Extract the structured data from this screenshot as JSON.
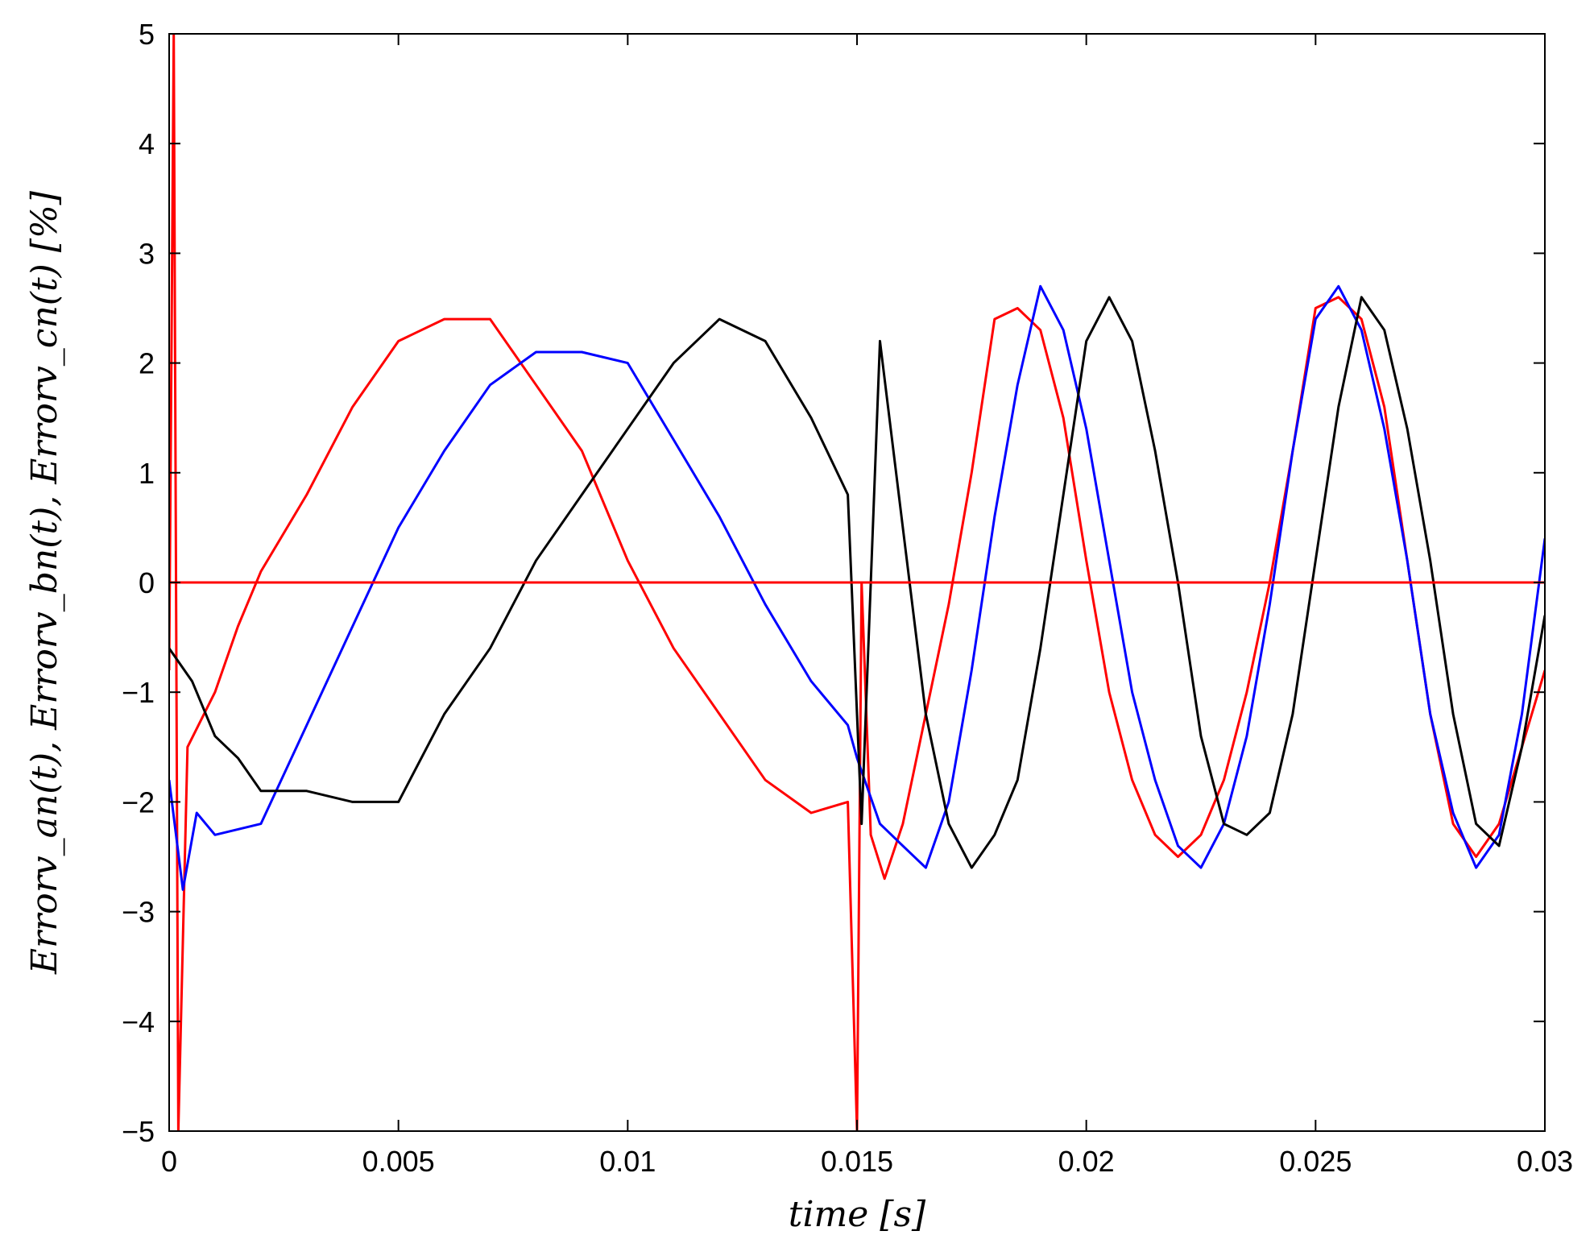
{
  "chart_data": {
    "type": "line",
    "title": "",
    "xlabel": "time  [s]",
    "ylabel": "Errorv_an(t), Errorv_bn(t), Errorv_cn(t)  [%]",
    "xlim": [
      0,
      0.03
    ],
    "ylim": [
      -5,
      5
    ],
    "grid": false,
    "legend": "none",
    "x_ticks": [
      {
        "value": 0,
        "label": "0"
      },
      {
        "value": 0.005,
        "label": "0.005"
      },
      {
        "value": 0.01,
        "label": "0.01"
      },
      {
        "value": 0.015,
        "label": "0.015"
      },
      {
        "value": 0.02,
        "label": "0.02"
      },
      {
        "value": 0.025,
        "label": "0.025"
      },
      {
        "value": 0.03,
        "label": "0.03"
      }
    ],
    "y_ticks": [
      {
        "value": 5,
        "label": "5"
      },
      {
        "value": 4,
        "label": "4"
      },
      {
        "value": 3,
        "label": "3"
      },
      {
        "value": 2,
        "label": "2"
      },
      {
        "value": 1,
        "label": "1"
      },
      {
        "value": 0,
        "label": "0"
      },
      {
        "value": -1,
        "label": "−1"
      },
      {
        "value": -2,
        "label": "−2"
      },
      {
        "value": -3,
        "label": "−3"
      },
      {
        "value": -4,
        "label": "−4"
      },
      {
        "value": -5,
        "label": "−5"
      }
    ],
    "series": [
      {
        "color": "#ff0000",
        "x": [
          0,
          0.0001,
          0.0002,
          0.0004,
          0.001,
          0.0015,
          0.002,
          0.003,
          0.004,
          0.005,
          0.006,
          0.007,
          0.0075,
          0.008,
          0.009,
          0.01,
          0.011,
          0.012,
          0.013,
          0.014,
          0.0148,
          0.015,
          0.0151,
          0.0153,
          0.0156,
          0.016,
          0.0165,
          0.017,
          0.0175,
          0.018,
          0.0185,
          0.019,
          0.0195,
          0.02,
          0.0205,
          0.021,
          0.0215,
          0.022,
          0.0225,
          0.023,
          0.0235,
          0.024,
          0.0245,
          0.025,
          0.0255,
          0.026,
          0.0265,
          0.027,
          0.0275,
          0.028,
          0.0285,
          0.029,
          0.0295,
          0.03
        ],
        "y": [
          -0.8,
          5,
          -5,
          -1.5,
          -1.0,
          -0.4,
          0.1,
          0.8,
          1.6,
          2.2,
          2.4,
          2.4,
          2.1,
          1.8,
          1.2,
          0.2,
          -0.6,
          -1.2,
          -1.8,
          -2.1,
          -2.0,
          -5,
          0.0,
          -2.3,
          -2.7,
          -2.2,
          -1.2,
          -0.2,
          1.0,
          2.4,
          2.5,
          2.3,
          1.5,
          0.2,
          -1.0,
          -1.8,
          -2.3,
          -2.5,
          -2.3,
          -1.8,
          -1.0,
          0.0,
          1.2,
          2.5,
          2.6,
          2.4,
          1.6,
          0.2,
          -1.2,
          -2.2,
          -2.5,
          -2.2,
          -1.5,
          -0.8
        ]
      },
      {
        "color": "#0000ff",
        "x": [
          0,
          0.0003,
          0.0006,
          0.001,
          0.002,
          0.003,
          0.004,
          0.005,
          0.006,
          0.007,
          0.008,
          0.009,
          0.01,
          0.011,
          0.012,
          0.013,
          0.014,
          0.0148,
          0.015,
          0.0155,
          0.016,
          0.0165,
          0.017,
          0.0175,
          0.018,
          0.0185,
          0.019,
          0.0195,
          0.02,
          0.0205,
          0.021,
          0.0215,
          0.022,
          0.0225,
          0.023,
          0.0235,
          0.024,
          0.0245,
          0.025,
          0.0255,
          0.026,
          0.0265,
          0.027,
          0.0275,
          0.028,
          0.0285,
          0.029,
          0.0295,
          0.03
        ],
        "y": [
          -1.8,
          -2.8,
          -2.1,
          -2.3,
          -2.2,
          -1.3,
          -0.4,
          0.5,
          1.2,
          1.8,
          2.1,
          2.1,
          2.0,
          1.3,
          0.6,
          -0.2,
          -0.9,
          -1.3,
          -1.6,
          -2.2,
          -2.4,
          -2.6,
          -2.0,
          -0.8,
          0.6,
          1.8,
          2.7,
          2.3,
          1.4,
          0.2,
          -1.0,
          -1.8,
          -2.4,
          -2.6,
          -2.2,
          -1.4,
          -0.2,
          1.2,
          2.4,
          2.7,
          2.3,
          1.4,
          0.2,
          -1.2,
          -2.1,
          -2.6,
          -2.3,
          -1.2,
          0.4
        ]
      },
      {
        "color": "#000000",
        "x": [
          0,
          0.0005,
          0.001,
          0.0015,
          0.002,
          0.003,
          0.004,
          0.005,
          0.006,
          0.007,
          0.008,
          0.009,
          0.01,
          0.011,
          0.012,
          0.013,
          0.014,
          0.0148,
          0.0151,
          0.0155,
          0.016,
          0.0165,
          0.017,
          0.0175,
          0.018,
          0.0185,
          0.019,
          0.0195,
          0.02,
          0.0205,
          0.021,
          0.0215,
          0.022,
          0.0225,
          0.023,
          0.0235,
          0.024,
          0.0245,
          0.025,
          0.0255,
          0.026,
          0.0265,
          0.027,
          0.0275,
          0.028,
          0.0285,
          0.029,
          0.0295,
          0.03
        ],
        "y": [
          -0.6,
          -0.9,
          -1.4,
          -1.6,
          -1.9,
          -1.9,
          -2.0,
          -2.0,
          -1.2,
          -0.6,
          0.2,
          0.8,
          1.4,
          2.0,
          2.4,
          2.2,
          1.5,
          0.8,
          -2.2,
          2.2,
          0.5,
          -1.2,
          -2.2,
          -2.6,
          -2.3,
          -1.8,
          -0.6,
          0.8,
          2.2,
          2.6,
          2.2,
          1.2,
          0.0,
          -1.4,
          -2.2,
          -2.3,
          -2.1,
          -1.2,
          0.2,
          1.6,
          2.6,
          2.3,
          1.4,
          0.2,
          -1.2,
          -2.2,
          -2.4,
          -1.5,
          -0.3
        ]
      },
      {
        "color": "#ff0000",
        "x": [
          0,
          0.03
        ],
        "y": [
          0,
          0
        ]
      }
    ]
  }
}
